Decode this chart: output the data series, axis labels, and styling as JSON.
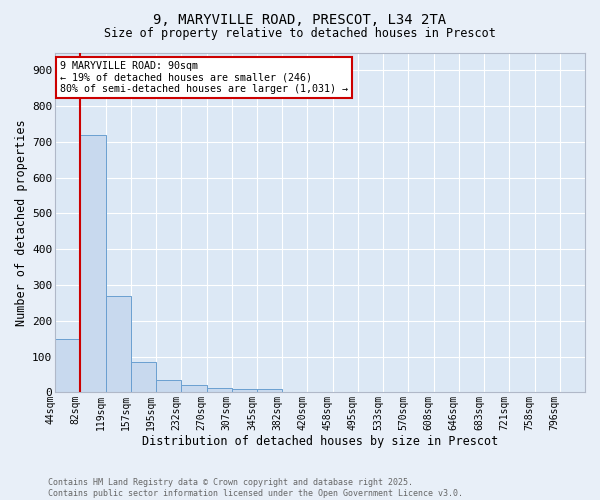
{
  "title": "9, MARYVILLE ROAD, PRESCOT, L34 2TA",
  "subtitle": "Size of property relative to detached houses in Prescot",
  "xlabel": "Distribution of detached houses by size in Prescot",
  "ylabel": "Number of detached properties",
  "bar_labels": [
    "44sqm",
    "82sqm",
    "119sqm",
    "157sqm",
    "195sqm",
    "232sqm",
    "270sqm",
    "307sqm",
    "345sqm",
    "382sqm",
    "420sqm",
    "458sqm",
    "495sqm",
    "533sqm",
    "570sqm",
    "608sqm",
    "646sqm",
    "683sqm",
    "721sqm",
    "758sqm",
    "796sqm"
  ],
  "bar_values": [
    148,
    718,
    270,
    85,
    35,
    20,
    12,
    10,
    8,
    0,
    0,
    0,
    0,
    0,
    0,
    0,
    0,
    0,
    0,
    0,
    0
  ],
  "bar_color": "#c8d9ee",
  "bar_edge_color": "#6a9fd0",
  "property_line_color": "#cc0000",
  "annotation_title": "9 MARYVILLE ROAD: 90sqm",
  "annotation_line1": "← 19% of detached houses are smaller (246)",
  "annotation_line2": "80% of semi-detached houses are larger (1,031) →",
  "annotation_box_color": "#cc0000",
  "ylim": [
    0,
    950
  ],
  "yticks": [
    0,
    100,
    200,
    300,
    400,
    500,
    600,
    700,
    800,
    900
  ],
  "bg_color": "#e8eff8",
  "plot_bg_color": "#dce8f5",
  "grid_color": "#ffffff",
  "footer_line1": "Contains HM Land Registry data © Crown copyright and database right 2025.",
  "footer_line2": "Contains public sector information licensed under the Open Government Licence v3.0."
}
